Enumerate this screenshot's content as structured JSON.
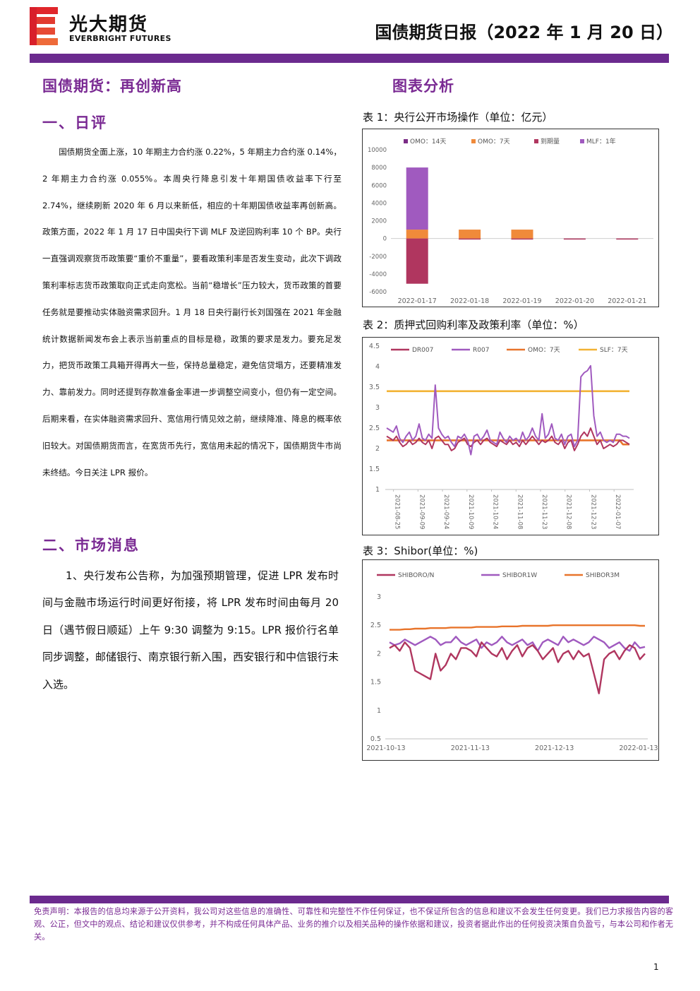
{
  "header": {
    "brand_cn": "光大期货",
    "brand_en": "EVERBRIGHT FUTURES",
    "report_title": "国债期货日报（2022 年 1 月 20 日）"
  },
  "colors": {
    "header_bar": "#6b2a8e",
    "heading": "#7a2a93",
    "logo_red": "#e0262b"
  },
  "left": {
    "main_heading": "国债期货：再创新高",
    "section1_heading": "一、日评",
    "section1_text": "国债期货全面上涨，10 年期主力合约涨 0.22%，5 年期主力合约涨 0.14%，2 年期主力合约涨 0.055%。本周央行降息引发十年期国债收益率下行至 2.74%，继续刷新 2020 年 6 月以来新低，相应的十年期国债收益率再创新高。政策方面，2022 年 1 月 17 日中国央行下调 MLF 及逆回购利率 10 个 BP。央行一直强调观察货币政策要“重价不重量”，要看政策利率是否发生变动，此次下调政策利率标志货币政策取向正式走向宽松。当前“稳增长”压力较大，货币政策的首要任务就是要推动实体融资需求回升。1 月 18 日央行副行长刘国强在 2021 年金融统计数据新闻发布会上表示当前重点的目标是稳，政策的要求是发力。要充足发力，把货币政策工具箱开得再大一些，保持总量稳定，避免信贷塌方，还要精准发力、靠前发力。同时还提到存款准备金率进一步调整空间变小，但仍有一定空间。后期来看，在实体融资需求回升、宽信用行情见效之前，继续降准、降息的概率依旧较大。对国债期货而言，在宽货币先行，宽信用未起的情况下，国债期货牛市尚未终结。今日关注 LPR 报价。",
    "section2_heading": "二、市场消息",
    "section2_text": "1、央行发布公告称，为加强预期管理，促进 LPR 发布时间与金融市场运行时间更好衔接，将 LPR 发布时间由每月 20 日（遇节假日顺延）上午 9:30 调整为 9:15。LPR 报价行名单同步调整，邮储银行、南京银行新入围，西安银行和中信银行未入选。"
  },
  "right": {
    "heading": "图表分析",
    "caption1": "表 1：央行公开市场操作（单位：亿元）",
    "caption2": "表 2：质押式回购利率及政策利率（单位：%）",
    "caption3": "表 3：Shibor(单位：%)"
  },
  "chart_data": [
    {
      "type": "bar",
      "stacked": true,
      "categories": [
        "2022-01-17",
        "2022-01-18",
        "2022-01-19",
        "2022-01-20",
        "2022-01-21"
      ],
      "series": [
        {
          "name": "OMO：14天",
          "color": "#7b2c86",
          "values": [
            0,
            0,
            0,
            0,
            0
          ]
        },
        {
          "name": "OMO：7天",
          "color": "#f08a3a",
          "values": [
            1000,
            1000,
            1000,
            0,
            0
          ]
        },
        {
          "name": "到期量",
          "color": "#b0365f",
          "values": [
            -5100,
            -100,
            -100,
            -100,
            -100
          ]
        },
        {
          "name": "MLF：1年",
          "color": "#a05abf",
          "values": [
            7000,
            0,
            0,
            0,
            0
          ]
        }
      ],
      "ylim": [
        -6000,
        10000
      ],
      "yticks": [
        10000,
        8000,
        6000,
        4000,
        2000,
        0,
        -2000,
        -4000,
        -6000
      ],
      "legend": "top"
    },
    {
      "type": "line",
      "x_ticks": [
        "2021-08-25",
        "2021-09-09",
        "2021-09-24",
        "2021-10-09",
        "2021-10-24",
        "2021-11-08",
        "2021-11-23",
        "2021-12-08",
        "2021-12-23",
        "2022-01-07"
      ],
      "x_range": [
        "2021-08-20",
        "2022-01-19"
      ],
      "ylim": [
        1,
        4.5
      ],
      "yticks": [
        4.5,
        4,
        3.5,
        3,
        2.5,
        2,
        1.5,
        1
      ],
      "legend": "top",
      "series": [
        {
          "name": "DR007",
          "color": "#b0365f",
          "values": [
            2.3,
            2.25,
            2.2,
            2.3,
            2.15,
            2.05,
            2.1,
            2.2,
            2.1,
            2.15,
            2.25,
            2.15,
            2.1,
            2.2,
            2.0,
            2.25,
            2.3,
            2.2,
            2.1,
            2.1,
            1.95,
            2.0,
            2.15,
            2.2,
            2.25,
            2.1,
            2.05,
            2.15,
            2.2,
            2.1,
            2.2,
            2.25,
            2.15,
            2.1,
            2.05,
            2.2,
            2.15,
            2.1,
            2.2,
            2.1,
            2.15,
            2.05,
            2.2,
            2.1,
            2.2,
            2.3,
            2.2,
            2.1,
            2.2,
            2.15,
            2.2,
            2.3,
            2.15,
            2.1,
            2.2,
            2.0,
            2.15,
            2.2,
            1.95,
            2.1,
            2.3,
            2.4,
            2.3,
            2.5,
            2.3,
            2.1,
            2.2,
            2.0,
            2.05,
            2.1,
            2.05,
            2.1,
            2.2,
            2.2,
            2.15,
            2.1
          ]
        },
        {
          "name": "R007",
          "color": "#a05abf",
          "values": [
            2.5,
            2.45,
            2.4,
            2.55,
            2.25,
            2.15,
            2.3,
            2.4,
            2.2,
            2.3,
            2.6,
            2.25,
            2.2,
            2.35,
            2.25,
            3.55,
            2.5,
            2.35,
            2.25,
            2.3,
            2.15,
            2.05,
            2.3,
            2.25,
            2.35,
            2.2,
            1.85,
            2.3,
            2.35,
            2.2,
            2.3,
            2.45,
            2.2,
            2.15,
            2.1,
            2.4,
            2.25,
            2.15,
            2.3,
            2.2,
            2.25,
            2.15,
            2.4,
            2.2,
            2.3,
            2.5,
            2.3,
            2.2,
            2.85,
            2.25,
            2.35,
            2.6,
            2.25,
            2.2,
            2.35,
            2.1,
            2.3,
            2.35,
            2.05,
            2.2,
            3.75,
            3.85,
            3.9,
            4.02,
            2.8,
            2.3,
            2.4,
            2.2,
            2.15,
            2.2,
            2.15,
            2.35,
            2.35,
            2.3,
            2.3,
            2.25
          ]
        },
        {
          "name": "OMO：7天",
          "color": "#e8742b",
          "values": [
            2.2,
            2.2,
            2.2,
            2.2,
            2.2,
            2.2,
            2.2,
            2.2,
            2.2,
            2.2,
            2.2,
            2.2,
            2.2,
            2.2,
            2.2,
            2.2,
            2.2,
            2.2,
            2.2,
            2.2,
            2.2,
            2.2,
            2.2,
            2.2,
            2.2,
            2.2,
            2.2,
            2.2,
            2.2,
            2.2,
            2.2,
            2.2,
            2.2,
            2.2,
            2.2,
            2.2,
            2.2,
            2.2,
            2.2,
            2.2,
            2.2,
            2.2,
            2.2,
            2.2,
            2.2,
            2.2,
            2.2,
            2.2,
            2.2,
            2.2,
            2.2,
            2.2,
            2.2,
            2.2,
            2.2,
            2.2,
            2.2,
            2.2,
            2.2,
            2.2,
            2.2,
            2.2,
            2.2,
            2.2,
            2.2,
            2.2,
            2.2,
            2.2,
            2.2,
            2.2,
            2.2,
            2.2,
            2.2,
            2.1,
            2.1,
            2.1
          ]
        },
        {
          "name": "SLF：7天",
          "color": "#f2b233",
          "values": [
            3.4,
            3.4,
            3.4,
            3.4,
            3.4,
            3.4,
            3.4,
            3.4,
            3.4,
            3.4,
            3.4,
            3.4,
            3.4,
            3.4,
            3.4,
            3.4,
            3.4,
            3.4,
            3.4,
            3.4,
            3.4,
            3.4,
            3.4,
            3.4,
            3.4,
            3.4,
            3.4,
            3.4,
            3.4,
            3.4,
            3.4,
            3.4,
            3.4,
            3.4,
            3.4,
            3.4,
            3.4,
            3.4,
            3.4,
            3.4,
            3.4,
            3.4,
            3.4,
            3.4,
            3.4,
            3.4,
            3.4,
            3.4,
            3.4,
            3.4,
            3.4,
            3.4,
            3.4,
            3.4,
            3.4,
            3.4,
            3.4,
            3.4,
            3.4,
            3.4,
            3.4,
            3.4,
            3.4,
            3.4,
            3.4,
            3.4,
            3.4,
            3.4,
            3.4,
            3.4,
            3.4,
            3.4,
            3.4,
            3.4,
            3.4,
            3.4
          ]
        }
      ]
    },
    {
      "type": "line",
      "x_ticks": [
        "2021-10-13",
        "2021-11-13",
        "2021-12-13",
        "2022-01-13"
      ],
      "ylim": [
        0.5,
        3
      ],
      "yticks": [
        3,
        2.5,
        2,
        1.5,
        1,
        0.5
      ],
      "legend": "top",
      "series": [
        {
          "name": "SHIBORO/N",
          "color": "#b0365f",
          "values": [
            2.1,
            2.15,
            2.05,
            2.2,
            2.1,
            1.7,
            1.65,
            1.6,
            1.55,
            2.0,
            1.7,
            1.8,
            2.0,
            1.9,
            2.1,
            2.1,
            2.05,
            1.95,
            2.2,
            2.1,
            2.0,
            1.95,
            2.1,
            1.9,
            2.05,
            2.15,
            1.95,
            2.1,
            2.15,
            2.05,
            1.9,
            2.0,
            2.1,
            1.85,
            2.0,
            2.05,
            1.9,
            2.05,
            1.95,
            2.0,
            1.65,
            1.3,
            1.9,
            2.0,
            2.05,
            1.9,
            2.05,
            2.15,
            2.1,
            1.9,
            2.0
          ]
        },
        {
          "name": "SHIBOR1W",
          "color": "#a05abf",
          "values": [
            2.2,
            2.15,
            2.18,
            2.25,
            2.2,
            2.15,
            2.2,
            2.25,
            2.3,
            2.25,
            2.15,
            2.2,
            2.2,
            2.3,
            2.2,
            2.15,
            2.2,
            2.25,
            2.1,
            2.2,
            2.15,
            2.2,
            2.3,
            2.2,
            2.15,
            2.2,
            2.25,
            2.15,
            2.2,
            2.05,
            2.2,
            2.25,
            2.2,
            2.15,
            2.3,
            2.2,
            2.25,
            2.2,
            2.15,
            2.2,
            2.3,
            2.25,
            2.2,
            2.1,
            2.15,
            2.2,
            2.1,
            2.05,
            2.2,
            2.1,
            2.12
          ]
        },
        {
          "name": "SHIBOR3M",
          "color": "#e8742b",
          "values": [
            2.42,
            2.42,
            2.42,
            2.43,
            2.43,
            2.44,
            2.44,
            2.44,
            2.45,
            2.45,
            2.45,
            2.45,
            2.46,
            2.46,
            2.46,
            2.46,
            2.46,
            2.47,
            2.47,
            2.47,
            2.47,
            2.47,
            2.48,
            2.48,
            2.48,
            2.48,
            2.49,
            2.49,
            2.49,
            2.49,
            2.49,
            2.49,
            2.5,
            2.5,
            2.5,
            2.5,
            2.5,
            2.5,
            2.5,
            2.5,
            2.5,
            2.5,
            2.5,
            2.5,
            2.5,
            2.5,
            2.5,
            2.5,
            2.5,
            2.49,
            2.49
          ]
        }
      ]
    }
  ],
  "footer": {
    "disclaimer": "免责声明：本报告的信息均来源于公开资料，我公司对这些信息的准确性、可靠性和完整性不作任何保证，也不保证所包含的信息和建议不会发生任何变更。我们已力求报告内容的客观、公正，但文中的观点、结论和建议仅供参考，并不构成任何具体产品、业务的推介以及相关品种的操作依据和建议，投资者据此作出的任何投资决策自负盈亏，与本公司和作者无关。",
    "page_number": "1"
  }
}
